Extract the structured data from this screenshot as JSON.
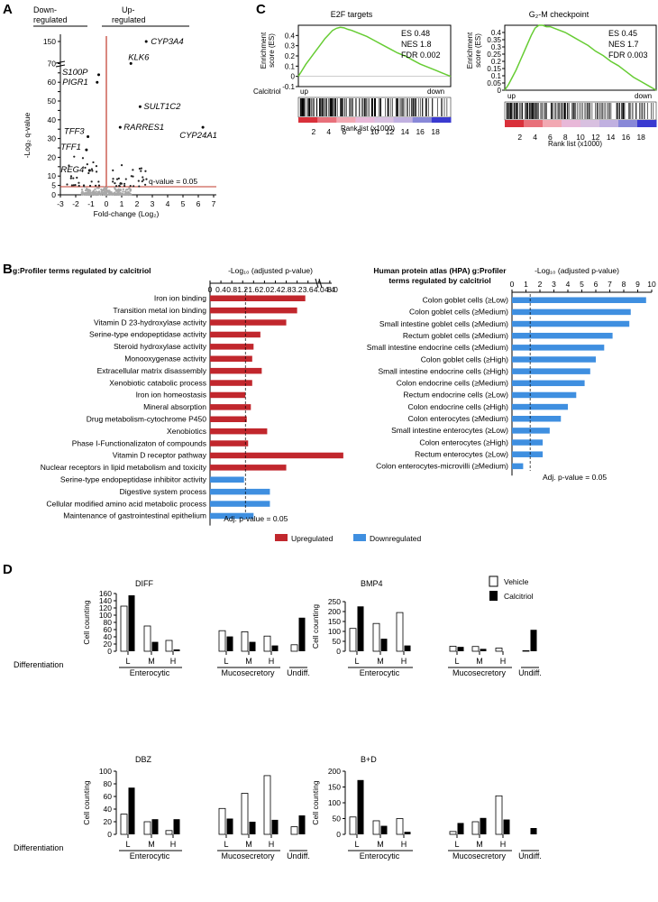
{
  "panel_letters": {
    "a": "A",
    "b": "B",
    "c": "C",
    "d": "D"
  },
  "volcano": {
    "label_down": [
      "Down-",
      "regulated"
    ],
    "label_up": [
      "Up-",
      "regulated"
    ],
    "ylabel": "-Log₂ q-value",
    "xlabel": "Fold-change (Log₂)",
    "threshold_label": "q-value = 0.05",
    "genes": [
      {
        "name": "CYP3A4",
        "x": 2.6,
        "y": 145
      },
      {
        "name": "KLK6",
        "x": 1.6,
        "y": 70
      },
      {
        "name": "S100P",
        "x": -0.5,
        "y": 64
      },
      {
        "name": "PIGR1",
        "x": -0.6,
        "y": 60
      },
      {
        "name": "SULT1C2",
        "x": 2.2,
        "y": 47
      },
      {
        "name": "RARRES1",
        "x": 0.9,
        "y": 36
      },
      {
        "name": "CYP24A1",
        "x": 6.3,
        "y": 36
      },
      {
        "name": "TFF3",
        "x": -1.2,
        "y": 31
      },
      {
        "name": "TFF1",
        "x": -1.3,
        "y": 24
      },
      {
        "name": "REG4",
        "x": -1.1,
        "y": 13
      }
    ]
  },
  "chart_data": [
    {
      "type": "scatter",
      "title": "Volcano plot",
      "xlabel": "Fold-change (Log₂)",
      "ylabel": "-Log₂ q-value",
      "xticks": [
        "-3",
        "-2",
        "-1",
        "0",
        "1",
        "2",
        "3",
        "4",
        "5",
        "6",
        "7"
      ],
      "yticks": [
        "0",
        "5",
        "10",
        "15",
        "20",
        "25",
        "30",
        "35",
        "40",
        "45",
        "50",
        "55",
        "60",
        "65",
        "70",
        "150"
      ],
      "threshold": 0.05
    },
    {
      "type": "line",
      "title": "E2F targets",
      "ylabel": "Enrichment score (ES)",
      "xlabel": "Rank list (x1000)",
      "yticks": [
        "-0.1",
        "0",
        "0.1",
        "0.2",
        "0.3",
        "0.4"
      ],
      "xticks": [
        "2",
        "4",
        "6",
        "8",
        "10",
        "12",
        "14",
        "16",
        "18"
      ],
      "curve_x": [
        0,
        0.5,
        1,
        1.5,
        2,
        2.5,
        3,
        3.5,
        4,
        4.5,
        5,
        5.5,
        6,
        6.5,
        7,
        8,
        9,
        10,
        11,
        12,
        13,
        14,
        15,
        16,
        17,
        18,
        19,
        20
      ],
      "curve_y": [
        0,
        0.06,
        0.12,
        0.17,
        0.22,
        0.27,
        0.32,
        0.37,
        0.41,
        0.45,
        0.47,
        0.48,
        0.475,
        0.46,
        0.45,
        0.42,
        0.39,
        0.35,
        0.31,
        0.27,
        0.23,
        0.2,
        0.16,
        0.12,
        0.09,
        0.06,
        0.03,
        0
      ],
      "stats": [
        "ES 0.48",
        "NES 1.8",
        "FDR 0.002"
      ]
    },
    {
      "type": "line",
      "title": "G₂-M checkpoint",
      "ylabel": "Enrichment score (ES)",
      "xlabel": "Rank list (x1000)",
      "yticks": [
        "0",
        "0.05",
        "0.1",
        "0.15",
        "0.2",
        "0.25",
        "0.3",
        "0.35",
        "0.4"
      ],
      "xticks": [
        "2",
        "4",
        "6",
        "8",
        "10",
        "12",
        "14",
        "16",
        "18"
      ],
      "curve_x": [
        0,
        0.5,
        1,
        1.5,
        2,
        2.5,
        3,
        3.5,
        4,
        4.5,
        5,
        5.5,
        6,
        7,
        8,
        9,
        10,
        11,
        12,
        13,
        14,
        15,
        16,
        17,
        18,
        19,
        20
      ],
      "curve_y": [
        0,
        0.04,
        0.09,
        0.14,
        0.2,
        0.26,
        0.32,
        0.38,
        0.43,
        0.45,
        0.45,
        0.44,
        0.44,
        0.42,
        0.4,
        0.37,
        0.34,
        0.31,
        0.27,
        0.24,
        0.2,
        0.17,
        0.13,
        0.09,
        0.06,
        0.03,
        0
      ],
      "stats": [
        "ES 0.45",
        "NES 1.7",
        "FDR 0.003"
      ]
    },
    {
      "type": "bar",
      "title": "g:Profiler terms regulated by calcitriol",
      "xlabel": "-Log₁₀ (adjusted p-value)",
      "xticks": [
        "0",
        "0.4",
        "0.8",
        "1.2",
        "1.6",
        "2.0",
        "2.4",
        "2.8",
        "3.2",
        "3.6",
        "4.0",
        "4.4"
      ],
      "categories": [
        "Iron ion binding",
        "Transition metal ion binding",
        "Vitamin D 23-hydroxylase activity",
        "Serine-type endopeptidase activity",
        "Steroid hydroxylase activity",
        "Monooxygenase activity",
        "Extracellular matrix disassembly",
        "Xenobiotic catabolic process",
        "Iron ion homeostasis",
        "Mineral absorption",
        "Drug metabolism-cytochrome P450",
        "Xenobiotics",
        "Phase I-Functionalizaton of compounds",
        "Vitamin D receptor pathway",
        "Nuclear receptors in lipid metabolism and toxicity",
        "Serine-type endopeptidase inhibitor activity",
        "Digestive system process",
        "Cellular modified amino acid metabolic process",
        "Maintenance of gastrointestinal epithelium"
      ],
      "values": [
        3.5,
        3.2,
        2.8,
        1.85,
        1.6,
        1.55,
        1.9,
        1.55,
        1.3,
        1.5,
        1.35,
        2.1,
        1.4,
        5.0,
        2.8,
        1.25,
        2.2,
        2.2,
        1.6
      ],
      "direction": [
        "up",
        "up",
        "up",
        "up",
        "up",
        "up",
        "up",
        "up",
        "up",
        "up",
        "up",
        "up",
        "up",
        "up",
        "up",
        "down",
        "down",
        "down",
        "down"
      ],
      "threshold_label": "Adj. p-value = 0.05"
    },
    {
      "type": "bar",
      "title": "Human protein atlas (HPA) g:Profiler terms regulated by calcitriol",
      "xlabel": "-Log₁₀ (adjusted p-value)",
      "xticks": [
        "0",
        "1",
        "2",
        "3",
        "4",
        "5",
        "6",
        "7",
        "8",
        "9",
        "10"
      ],
      "categories": [
        "Colon goblet cells (≥Low)",
        "Colon goblet cells (≥Medium)",
        "Small intestine goblet cells (≥Medium)",
        "Rectum goblet cells (≥Medium)",
        "Small intestine endocrine cells (≥Medium)",
        "Colon goblet cells (≥High)",
        "Small intestine endocrine cells (≥High)",
        "Colon endocrine cells (≥Medium)",
        "Rectum endocrine cells (≥Low)",
        "Colon endocrine cells (≥High)",
        "Colon enterocytes (≥Medium)",
        "Small intestine enterocytes (≥Low)",
        "Colon enterocytes (≥High)",
        "Rectum enterocytes (≥Low)",
        "Colon enterocytes-microvilli (≥Medium)"
      ],
      "values": [
        9.6,
        8.5,
        8.4,
        7.2,
        6.6,
        6.0,
        5.6,
        5.2,
        4.6,
        4.0,
        3.5,
        2.7,
        2.2,
        2.2,
        0.8
      ],
      "threshold_label": "Adj. p-value = 0.05"
    },
    {
      "type": "bar",
      "title": "DIFF",
      "ylabel": "Cell counting",
      "yticks": [
        "0",
        "20",
        "40",
        "60",
        "80",
        "100",
        "120",
        "140",
        "160"
      ],
      "categories": [
        "L",
        "M",
        "H",
        "L",
        "M",
        "H",
        "Undiff."
      ],
      "series": [
        {
          "name": "Vehicle",
          "values": [
            125,
            70,
            30,
            57,
            54,
            42,
            18
          ]
        },
        {
          "name": "Calcitriol",
          "values": [
            155,
            26,
            5,
            41,
            26,
            16,
            93
          ]
        }
      ]
    },
    {
      "type": "bar",
      "title": "BMP4",
      "ylabel": "Cell counting",
      "yticks": [
        "0",
        "50",
        "100",
        "150",
        "200",
        "250"
      ],
      "categories": [
        "L",
        "M",
        "H",
        "L",
        "M",
        "H",
        "Undiff."
      ],
      "series": [
        {
          "name": "Vehicle",
          "values": [
            115,
            140,
            195,
            25,
            24,
            16,
            3
          ]
        },
        {
          "name": "Calcitriol",
          "values": [
            226,
            63,
            29,
            22,
            12,
            0,
            108
          ]
        }
      ]
    },
    {
      "type": "bar",
      "title": "DBZ",
      "ylabel": "Cell counting",
      "yticks": [
        "0",
        "20",
        "40",
        "60",
        "80",
        "100"
      ],
      "categories": [
        "L",
        "M",
        "H",
        "L",
        "M",
        "H",
        "Undiff."
      ],
      "series": [
        {
          "name": "Vehicle",
          "values": [
            32,
            20,
            6,
            41,
            65,
            93,
            12
          ]
        },
        {
          "name": "Calcitriol",
          "values": [
            74,
            24,
            24,
            25,
            20,
            23,
            30
          ]
        }
      ]
    },
    {
      "type": "bar",
      "title": "B+D",
      "ylabel": "Cell counting",
      "yticks": [
        "0",
        "50",
        "100",
        "150",
        "200"
      ],
      "categories": [
        "L",
        "M",
        "H",
        "L",
        "M",
        "H",
        "Undiff."
      ],
      "series": [
        {
          "name": "Vehicle",
          "values": [
            55,
            43,
            50,
            9,
            40,
            122,
            0
          ]
        },
        {
          "name": "Calcitriol",
          "values": [
            172,
            27,
            8,
            36,
            52,
            47,
            20
          ]
        }
      ]
    }
  ],
  "legend_b": {
    "up": "Upregulated",
    "down": "Downregulated"
  },
  "legend_d": {
    "vehicle": "Vehicle",
    "calcitriol": "Calcitriol"
  },
  "gsea": {
    "calcitriol": "Calcitriol",
    "up": "up",
    "down": "down"
  },
  "groups": {
    "differentiation": "Differentiation",
    "enterocytic": "Enterocytic",
    "mucosecretory": "Mucosecretory",
    "undiff": "Undiff."
  },
  "colors": {
    "up": "#c1272d",
    "down": "#3f8fe0",
    "curve": "#66cc33",
    "threshold": "#c0392b"
  }
}
